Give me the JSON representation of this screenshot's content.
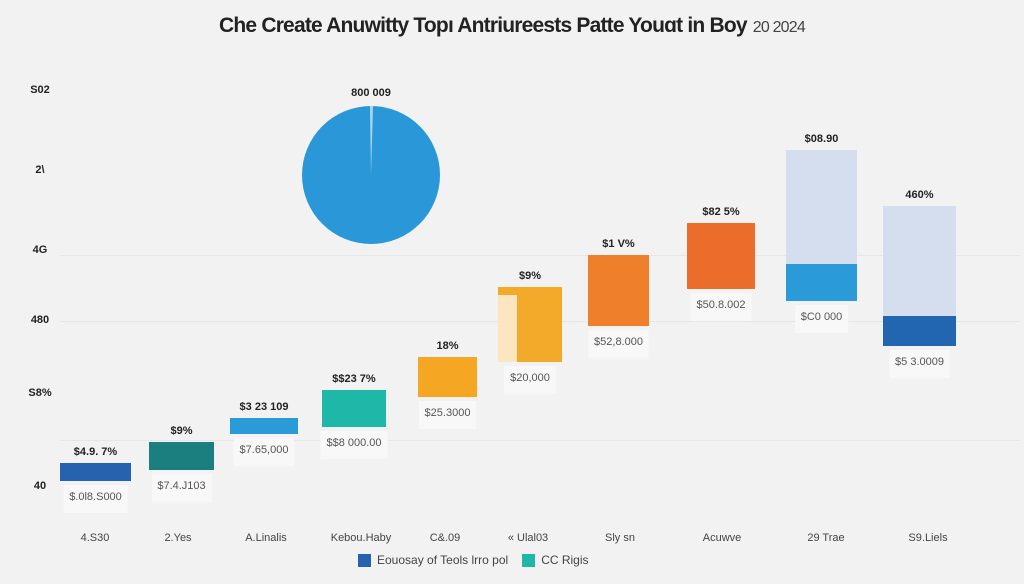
{
  "chart_data": {
    "type": "bar",
    "title": "Che Create Anuwitty Topı Antriureests Patte Youɑt  in Boy",
    "title_year": "20 2024",
    "y_tick_labels": [
      "S02",
      "2\\",
      "4G",
      "480",
      "S8%",
      "40"
    ],
    "categories": [
      "4.S30",
      "2.Yes",
      "A.Linalis",
      "Kebou.Haby",
      "C&.09",
      "« Ulal03",
      "Sly sn",
      "Acuwve",
      "29 Trae",
      "S9.Liels"
    ],
    "top_labels": [
      "$4.9. 7%",
      "$9%",
      "$3 23 109",
      "$$23 7%",
      "18%",
      "$9%",
      "$1 V%",
      "$82 5%",
      "$08.90",
      "460%"
    ],
    "bottom_labels": [
      "$.0l8.S000",
      "$7.4.J103",
      "$7.65,000",
      "$$8 000.00",
      "$25.3000",
      "$20,000",
      "$52,8.000",
      "$50.8.002",
      "$C0 000",
      "$5 3.0009"
    ],
    "bar_colors": [
      "#2563b0",
      "#1a7f7e",
      "#2a9ad8",
      "#1fb8a8",
      "#f5a623",
      "#f3a92a",
      "#f07f2c",
      "#ec6c2c",
      "#2a9ad8",
      "#2266b2"
    ],
    "pie": {
      "label": "800 009",
      "color": "#2a97d8",
      "slice_color": "#a8d8f5"
    },
    "legend": [
      {
        "label": "Eouosay of Teols lrro pol",
        "color": "#2563b0"
      },
      {
        "label": "CC Rigis",
        "color": "#1fb8a8"
      }
    ],
    "legend_position": "bottom",
    "grid": true
  }
}
